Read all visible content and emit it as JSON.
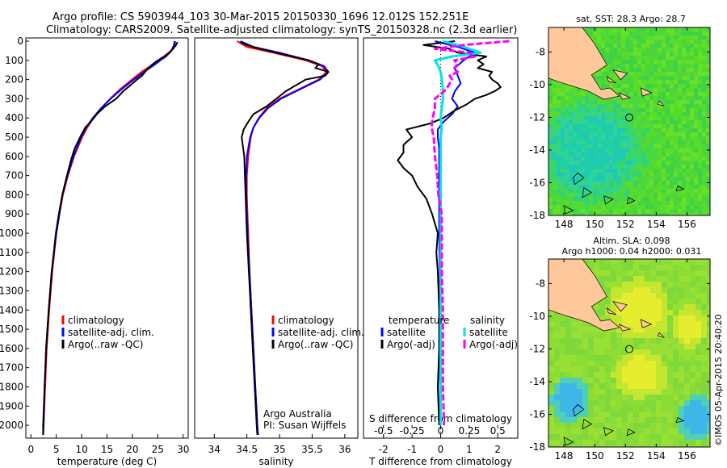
{
  "header": {
    "line1": "Argo profile: CS 5903944_103 30-Mar-2015 20150330_1696 12.012S 152.251E",
    "line2": "Climatology: CARS2009. Satellite-adjusted climatology: synTS_20150328.nc (2.3d earlier)"
  },
  "colors": {
    "climatology": "#ff0000",
    "satellite": "#0000ff",
    "argo": "#000000",
    "sal_satellite": "#00e5e5",
    "sal_argo": "#ff00ff",
    "land": "#ffc89a"
  },
  "chart_data": [
    {
      "type": "line",
      "id": "temperature",
      "xlabel": "temperature (deg C)",
      "ylabel": "",
      "xlim": [
        -1,
        31
      ],
      "ylim": [
        2050,
        0
      ],
      "xticks": [
        0,
        5,
        10,
        15,
        20,
        25,
        30
      ],
      "yticks": [
        0,
        100,
        200,
        300,
        400,
        500,
        600,
        700,
        800,
        900,
        1000,
        1100,
        1200,
        1300,
        1400,
        1500,
        1600,
        1700,
        1800,
        1900,
        2000
      ],
      "legend": [
        "climatology",
        "satellite-adj. clim.",
        "Argo(..raw -QC)"
      ],
      "legend_position": "lower-center",
      "series": [
        {
          "name": "climatology",
          "color": "#ff0000",
          "depth": [
            0,
            20,
            50,
            80,
            100,
            130,
            160,
            200,
            250,
            300,
            350,
            400,
            450,
            500,
            600,
            700,
            800,
            900,
            1000,
            1200,
            1400,
            1600,
            1800,
            2000,
            2050
          ],
          "values": [
            28.5,
            28.3,
            27.6,
            26.2,
            25.0,
            23.5,
            21.8,
            19.9,
            17.6,
            15.6,
            13.8,
            12.3,
            11.1,
            10.1,
            8.5,
            7.3,
            6.3,
            5.6,
            5.0,
            4.2,
            3.6,
            3.1,
            2.8,
            2.5,
            2.4
          ]
        },
        {
          "name": "satellite-adj. clim.",
          "color": "#0000ff",
          "depth": [
            0,
            20,
            50,
            80,
            100,
            130,
            160,
            200,
            250,
            300,
            350,
            400,
            450,
            500,
            600,
            700,
            800,
            900,
            1000,
            1200,
            1400,
            1600,
            1800,
            2000,
            2050
          ],
          "values": [
            28.3,
            28.2,
            27.7,
            26.6,
            25.5,
            24.0,
            22.3,
            20.3,
            17.9,
            15.7,
            13.8,
            12.2,
            10.9,
            9.9,
            8.4,
            7.2,
            6.2,
            5.5,
            4.9,
            4.1,
            3.5,
            3.0,
            2.7,
            2.5,
            2.4
          ]
        },
        {
          "name": "Argo(..raw -QC)",
          "color": "#000000",
          "depth": [
            5,
            20,
            40,
            60,
            80,
            100,
            120,
            150,
            180,
            200,
            230,
            260,
            300,
            340,
            380,
            420,
            450,
            500,
            560,
            620,
            700,
            800,
            900,
            1000,
            1200,
            1400,
            1600,
            1800,
            2000,
            2050
          ],
          "values": [
            28.9,
            28.6,
            28.0,
            27.3,
            26.3,
            25.1,
            24.0,
            22.8,
            21.9,
            20.9,
            19.6,
            18.2,
            16.8,
            14.6,
            13.0,
            11.8,
            10.7,
            9.7,
            8.6,
            7.9,
            7.1,
            6.2,
            5.6,
            5.0,
            4.1,
            3.5,
            3.0,
            2.7,
            2.4,
            2.4
          ]
        }
      ]
    },
    {
      "type": "line",
      "id": "salinity",
      "xlabel": "salinity",
      "xlim": [
        33.7,
        36.2
      ],
      "ylim": [
        2050,
        0
      ],
      "xticks": [
        34,
        34.5,
        35,
        35.5,
        36
      ],
      "legend": [
        "climatology",
        "satellite-adj. clim.",
        "Argo(..raw -QC)"
      ],
      "legend_position": "lower-center",
      "annotation": [
        "Argo Australia",
        "PI: Susan Wijffels"
      ],
      "series": [
        {
          "name": "climatology",
          "color": "#ff0000",
          "depth": [
            0,
            30,
            60,
            100,
            130,
            160,
            200,
            250,
            300,
            350,
            400,
            450,
            500,
            600,
            700,
            800,
            900,
            1000,
            1200,
            1400,
            1600,
            1800,
            2000,
            2050
          ],
          "values": [
            34.35,
            34.5,
            34.9,
            35.4,
            35.65,
            35.72,
            35.6,
            35.3,
            35.0,
            34.8,
            34.68,
            34.6,
            34.56,
            34.52,
            34.5,
            34.5,
            34.51,
            34.52,
            34.54,
            34.57,
            34.6,
            34.63,
            34.66,
            34.67
          ]
        },
        {
          "name": "satellite-adj. clim.",
          "color": "#0000ff",
          "depth": [
            0,
            30,
            60,
            100,
            130,
            160,
            200,
            250,
            300,
            350,
            400,
            450,
            500,
            600,
            700,
            800,
            900,
            1000,
            1200,
            1400,
            1600,
            1800,
            2000,
            2050
          ],
          "values": [
            34.4,
            34.6,
            35.0,
            35.45,
            35.68,
            35.75,
            35.62,
            35.32,
            35.02,
            34.82,
            34.69,
            34.6,
            34.55,
            34.5,
            34.49,
            34.49,
            34.5,
            34.51,
            34.54,
            34.57,
            34.6,
            34.63,
            34.66,
            34.67
          ]
        },
        {
          "name": "Argo(..raw -QC)",
          "color": "#000000",
          "depth": [
            5,
            20,
            40,
            60,
            80,
            100,
            120,
            140,
            160,
            180,
            200,
            230,
            260,
            300,
            340,
            380,
            420,
            460,
            500,
            550,
            600,
            700,
            800,
            900,
            1000,
            1200,
            1400,
            1600,
            1800,
            2000,
            2050
          ],
          "values": [
            34.4,
            34.5,
            34.7,
            34.95,
            35.2,
            35.45,
            35.6,
            35.55,
            35.75,
            35.7,
            35.4,
            35.25,
            35.1,
            34.95,
            34.8,
            34.6,
            34.52,
            34.45,
            34.42,
            34.44,
            34.46,
            34.47,
            34.48,
            34.49,
            34.5,
            34.53,
            34.56,
            34.59,
            34.62,
            34.65,
            34.66
          ]
        }
      ]
    },
    {
      "type": "line",
      "id": "difference",
      "xlabel": "T difference from climatology",
      "top_axis_label": "S difference from climatology",
      "xlim": [
        -2.7,
        2.7
      ],
      "ylim": [
        2050,
        0
      ],
      "xticks": [
        -2,
        -1,
        0,
        1,
        2
      ],
      "top_ticks_labels": [
        "-0.5",
        "-0.25",
        "0",
        "0.25",
        "0.5"
      ],
      "top_ticks_at_T": [
        -2,
        -1,
        0,
        1,
        2
      ],
      "legend_temperature": [
        "temperature",
        "satellite",
        "Argo(-adj)"
      ],
      "legend_salinity": [
        "salinity",
        "satellite",
        "Argo(-adj)"
      ],
      "series": [
        {
          "name": "temperature satellite",
          "color": "#0000ff",
          "kind": "T",
          "depth": [
            0,
            30,
            60,
            100,
            140,
            180,
            220,
            260,
            300,
            340,
            380,
            420,
            460,
            500,
            560,
            620,
            700,
            800,
            900,
            1000,
            1200,
            1400,
            1600,
            1800,
            2000
          ],
          "values": [
            -0.2,
            0.6,
            1.2,
            0.8,
            0.5,
            0.6,
            0.7,
            0.5,
            0.4,
            0.6,
            0.4,
            0.1,
            -0.1,
            -0.1,
            -0.05,
            -0.05,
            -0.05,
            -0.05,
            -0.05,
            -0.05,
            -0.03,
            -0.03,
            -0.03,
            -0.02,
            -0.02
          ]
        },
        {
          "name": "temperature Argo(-adj)",
          "color": "#000000",
          "kind": "T",
          "depth": [
            0,
            20,
            40,
            60,
            80,
            100,
            120,
            140,
            160,
            180,
            200,
            220,
            240,
            260,
            280,
            300,
            330,
            360,
            380,
            400,
            430,
            460,
            500,
            540,
            580,
            620,
            660,
            700,
            760,
            820,
            900,
            1000,
            1100,
            1200,
            1400,
            1600,
            1800,
            2000
          ],
          "values": [
            0.5,
            -0.6,
            0.3,
            0.6,
            1.6,
            1.3,
            1.5,
            1.3,
            1.8,
            1.7,
            1.8,
            2.0,
            2.1,
            1.9,
            1.6,
            1.2,
            0.9,
            0.5,
            0.3,
            0.1,
            -0.4,
            -1.2,
            -1.0,
            -1.3,
            -1.3,
            -1.5,
            -1.3,
            -1.0,
            -0.8,
            -0.5,
            -0.3,
            -0.1,
            -0.15,
            -0.1,
            -0.05,
            -0.05,
            -0.1,
            -0.05
          ]
        },
        {
          "name": "salinity satellite",
          "color": "#00e5e5",
          "kind": "S",
          "depth": [
            0,
            30,
            60,
            80,
            100,
            130,
            160,
            200,
            250,
            300,
            350,
            400,
            450,
            500,
            600,
            700,
            800,
            900,
            1000,
            1200,
            1400,
            1600,
            1800,
            2000
          ],
          "values": [
            0.02,
            0.2,
            0.35,
            0.1,
            -0.05,
            -0.02,
            0.0,
            0.01,
            0.02,
            0.02,
            0.01,
            0.0,
            0.01,
            0.0,
            0.0,
            0.0,
            0.0,
            0.0,
            0.0,
            0.0,
            0.0,
            0.0,
            0.0,
            0.0
          ]
        },
        {
          "name": "salinity Argo(-adj)",
          "color": "#ff00ff",
          "kind": "S",
          "depth": [
            0,
            20,
            40,
            60,
            80,
            100,
            120,
            140,
            160,
            180,
            200,
            250,
            300,
            350,
            400,
            450,
            500,
            600,
            700,
            800,
            900,
            1000,
            1200,
            1400,
            1600,
            1800,
            2000
          ],
          "values": [
            0.6,
            0.2,
            -0.05,
            0.25,
            0.3,
            0.12,
            0.15,
            0.12,
            0.15,
            0.08,
            0.1,
            0.05,
            -0.05,
            -0.05,
            -0.07,
            -0.08,
            -0.06,
            -0.05,
            -0.03,
            -0.02,
            0.01,
            0.01,
            0.01,
            0.02,
            0.02,
            0.02,
            0.03
          ]
        }
      ]
    },
    {
      "type": "heatmap",
      "id": "sst-map",
      "title": "sat. SST: 28.3 Argo: 28.7",
      "xlim": [
        147,
        157.5
      ],
      "ylim": [
        -18,
        -6.5
      ],
      "xticks": [
        148,
        150,
        152,
        154,
        156
      ],
      "yticks": [
        -8,
        -10,
        -12,
        -14,
        -16,
        -18
      ],
      "marker": {
        "lon": 152.25,
        "lat": -12.01
      }
    },
    {
      "type": "heatmap",
      "id": "sla-map",
      "title": "Altim. SLA: 0.098",
      "subtitle": "Argo h1000: 0.04 h2000: 0.031",
      "xlim": [
        147,
        157.5
      ],
      "ylim": [
        -18,
        -6.5
      ],
      "xticks": [
        148,
        150,
        152,
        154,
        156
      ],
      "yticks": [
        -8,
        -10,
        -12,
        -14,
        -16,
        -18
      ],
      "marker": {
        "lon": 152.25,
        "lat": -12.01
      }
    }
  ],
  "footer": {
    "credit": "©IMOS 05-Apr-2015 20:40:20"
  }
}
